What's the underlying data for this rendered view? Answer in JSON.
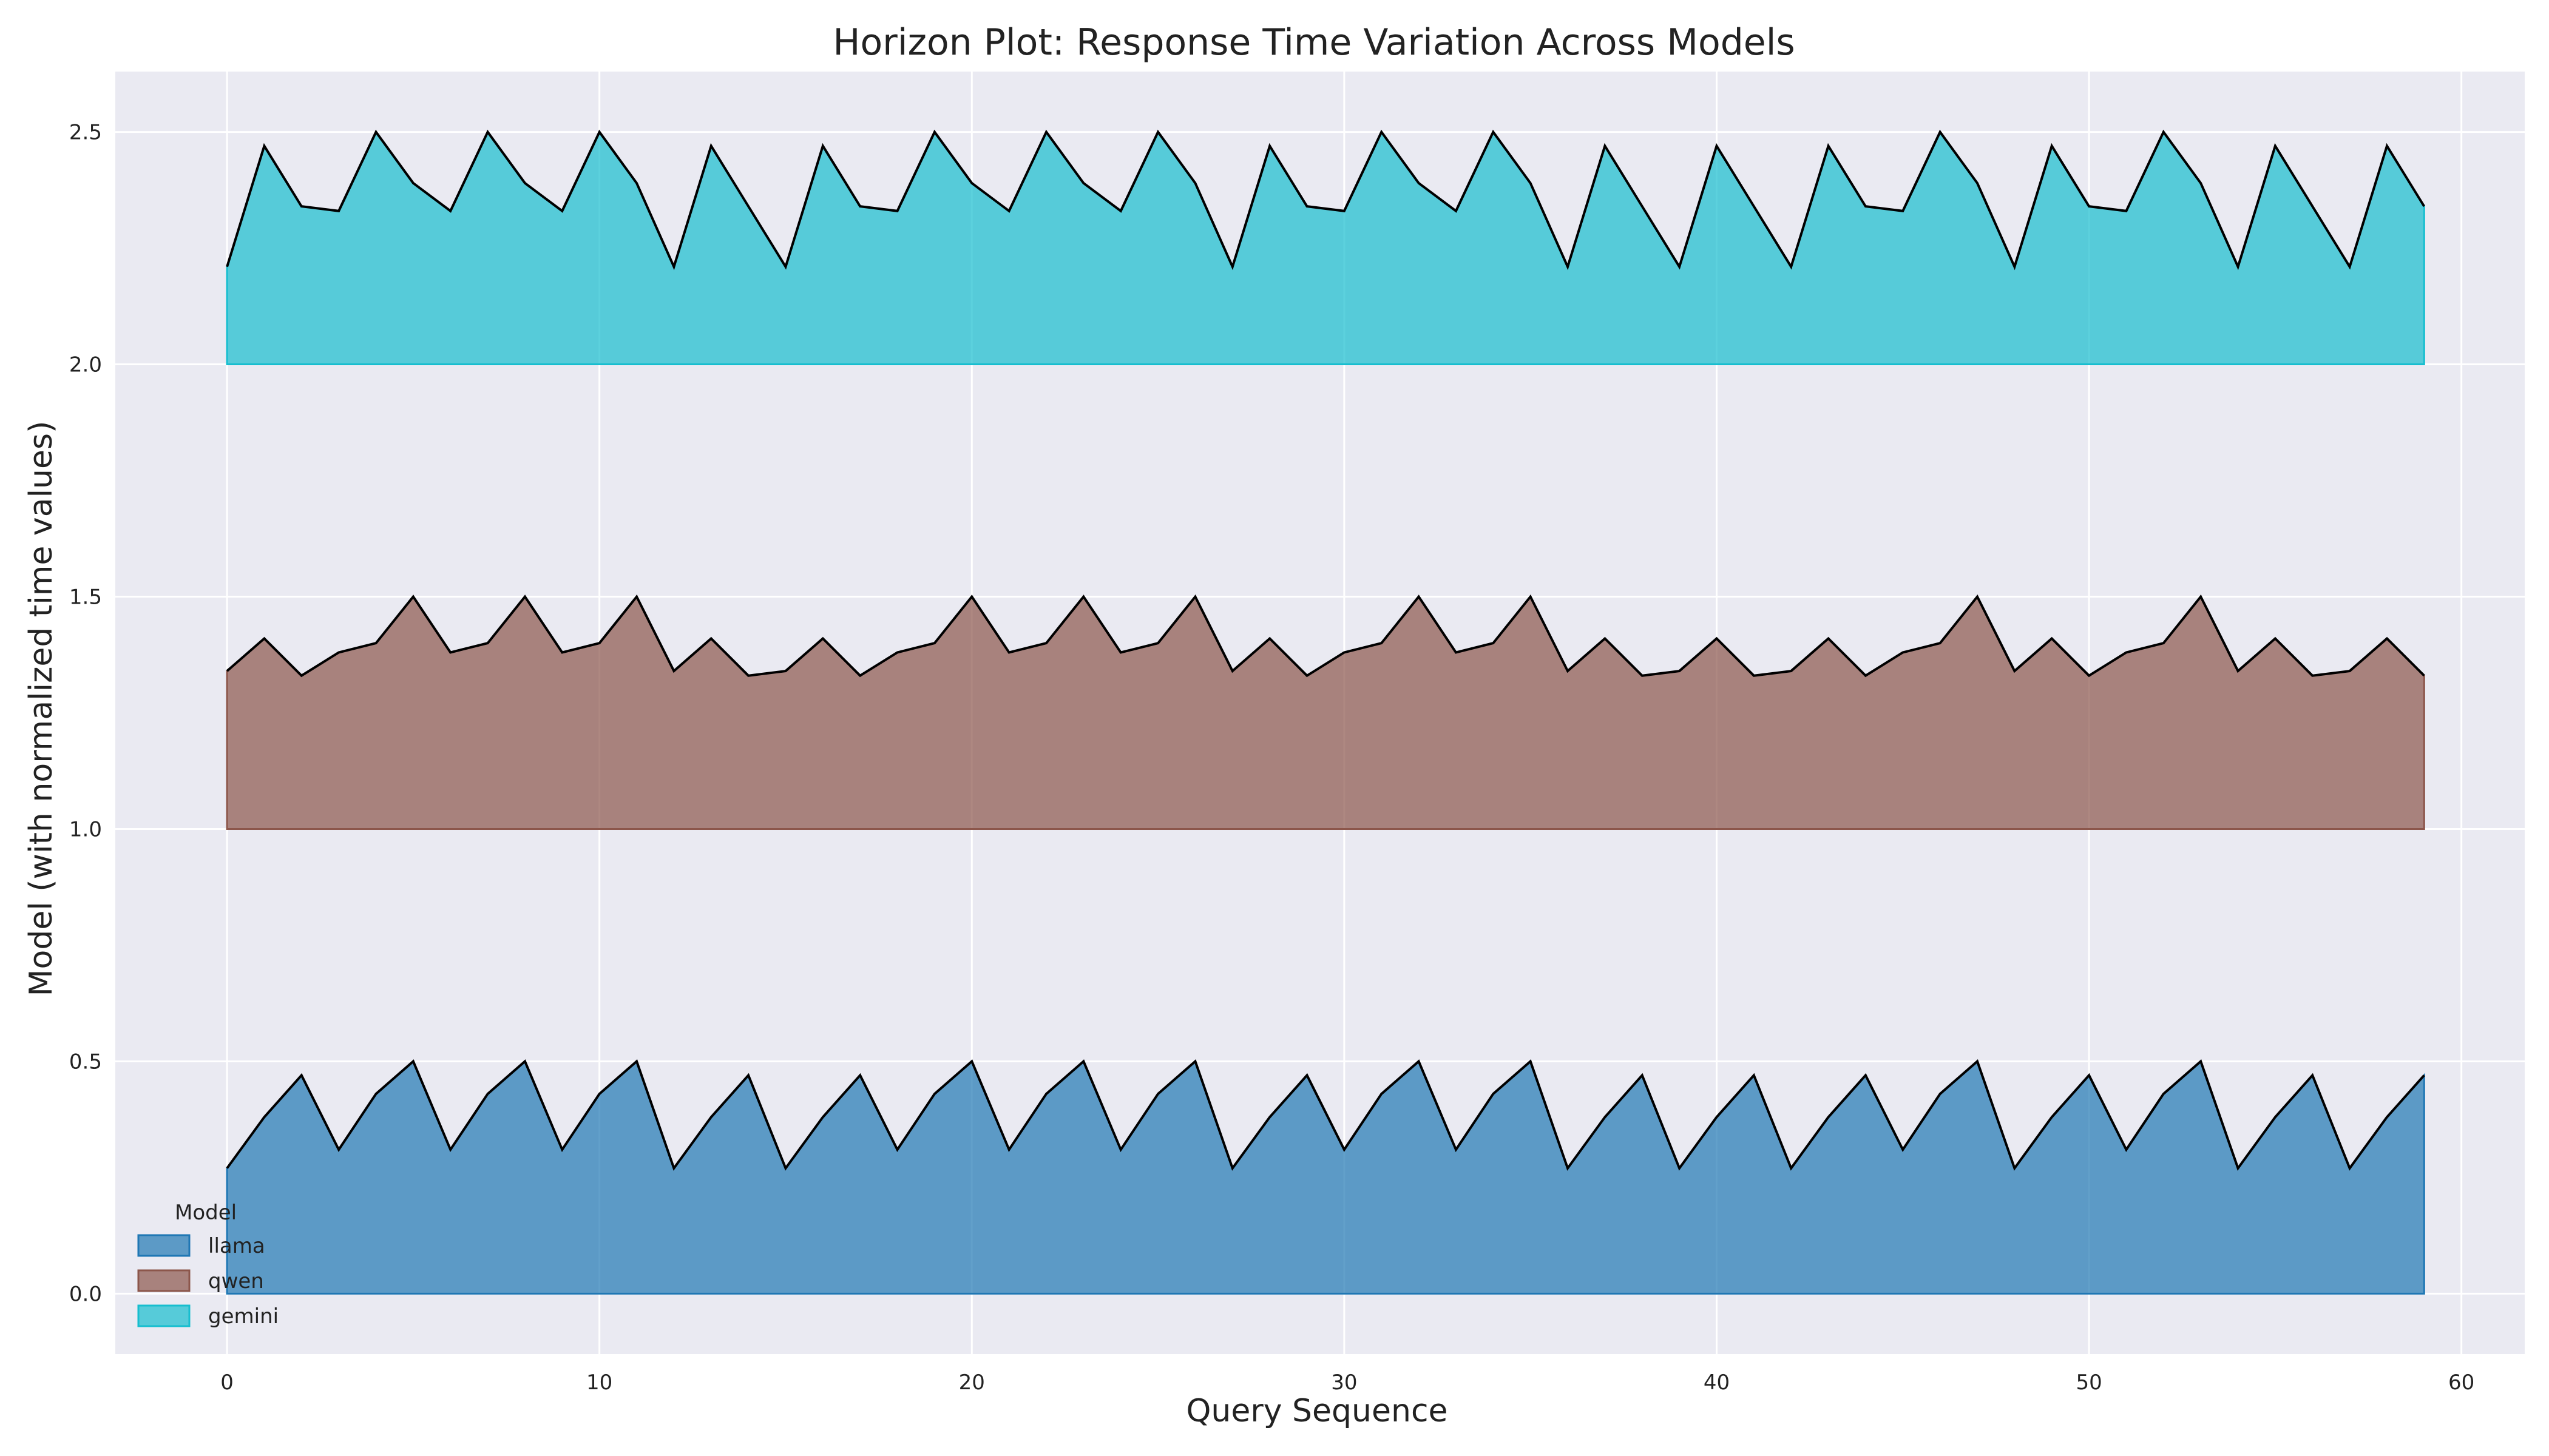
{
  "chart_data": {
    "type": "area",
    "title": "Horizon Plot: Response Time Variation Across Models",
    "xlabel": "Query Sequence",
    "ylabel": "Model (with normalized time values)",
    "xlim": [
      -3,
      61.7
    ],
    "ylim": [
      -0.13,
      2.63
    ],
    "x_ticks": [
      0,
      10,
      20,
      30,
      40,
      50,
      60
    ],
    "y_ticks": [
      0.0,
      0.5,
      1.0,
      1.5,
      2.0,
      2.5
    ],
    "x_tick_labels": [
      "0",
      "10",
      "20",
      "30",
      "40",
      "50",
      "60"
    ],
    "y_tick_labels": [
      "0.0",
      "0.5",
      "1.0",
      "1.5",
      "2.0",
      "2.5"
    ],
    "grid": true,
    "legend": {
      "title": "Model",
      "placement": "lower-left",
      "entries": [
        "llama",
        "qwen",
        "gemini"
      ]
    },
    "x": [
      0,
      1,
      2,
      3,
      4,
      5,
      6,
      7,
      8,
      9,
      10,
      11,
      12,
      13,
      14,
      15,
      16,
      17,
      18,
      19,
      20,
      21,
      22,
      23,
      24,
      25,
      26,
      27,
      28,
      29,
      30,
      31,
      32,
      33,
      34,
      35,
      36,
      37,
      38,
      39,
      40,
      41,
      42,
      43,
      44,
      45,
      46,
      47,
      48,
      49,
      50,
      51,
      52,
      53,
      54,
      55,
      56,
      57,
      58,
      59
    ],
    "series": [
      {
        "name": "llama",
        "baseline": 0,
        "color": "#1f77b4",
        "values": [
          0.27,
          0.38,
          0.47,
          0.31,
          0.43,
          0.5,
          0.31,
          0.43,
          0.5,
          0.31,
          0.43,
          0.5,
          0.27,
          0.38,
          0.47,
          0.27,
          0.38,
          0.47,
          0.31,
          0.43,
          0.5,
          0.31,
          0.43,
          0.5,
          0.31,
          0.43,
          0.5,
          0.27,
          0.38,
          0.47,
          0.31,
          0.43,
          0.5,
          0.31,
          0.43,
          0.5,
          0.27,
          0.38,
          0.47,
          0.27,
          0.38,
          0.47,
          0.27,
          0.38,
          0.47,
          0.31,
          0.43,
          0.5,
          0.27,
          0.38,
          0.47,
          0.31,
          0.43,
          0.5,
          0.27,
          0.38,
          0.47,
          0.27,
          0.38,
          0.47
        ]
      },
      {
        "name": "qwen",
        "baseline": 1,
        "color": "#8c564b",
        "values": [
          1.34,
          1.41,
          1.33,
          1.38,
          1.4,
          1.5,
          1.38,
          1.4,
          1.5,
          1.38,
          1.4,
          1.5,
          1.34,
          1.41,
          1.33,
          1.34,
          1.41,
          1.33,
          1.38,
          1.4,
          1.5,
          1.38,
          1.4,
          1.5,
          1.38,
          1.4,
          1.5,
          1.34,
          1.41,
          1.33,
          1.38,
          1.4,
          1.5,
          1.38,
          1.4,
          1.5,
          1.34,
          1.41,
          1.33,
          1.34,
          1.41,
          1.33,
          1.34,
          1.41,
          1.33,
          1.38,
          1.4,
          1.5,
          1.34,
          1.41,
          1.33,
          1.38,
          1.4,
          1.5,
          1.34,
          1.41,
          1.33,
          1.34,
          1.41,
          1.33
        ]
      },
      {
        "name": "gemini",
        "baseline": 2,
        "color": "#17becf",
        "values": [
          2.21,
          2.47,
          2.34,
          2.33,
          2.5,
          2.39,
          2.33,
          2.5,
          2.39,
          2.33,
          2.5,
          2.39,
          2.21,
          2.47,
          2.34,
          2.21,
          2.47,
          2.34,
          2.33,
          2.5,
          2.39,
          2.33,
          2.5,
          2.39,
          2.33,
          2.5,
          2.39,
          2.21,
          2.47,
          2.34,
          2.33,
          2.5,
          2.39,
          2.33,
          2.5,
          2.39,
          2.21,
          2.47,
          2.34,
          2.21,
          2.47,
          2.34,
          2.21,
          2.47,
          2.34,
          2.33,
          2.5,
          2.39,
          2.21,
          2.47,
          2.34,
          2.33,
          2.5,
          2.39,
          2.21,
          2.47,
          2.34,
          2.21,
          2.47,
          2.34
        ]
      }
    ],
    "colors": {
      "plot_background": "#eaeaf2",
      "grid": "#ffffff",
      "outline": "#000000"
    }
  }
}
